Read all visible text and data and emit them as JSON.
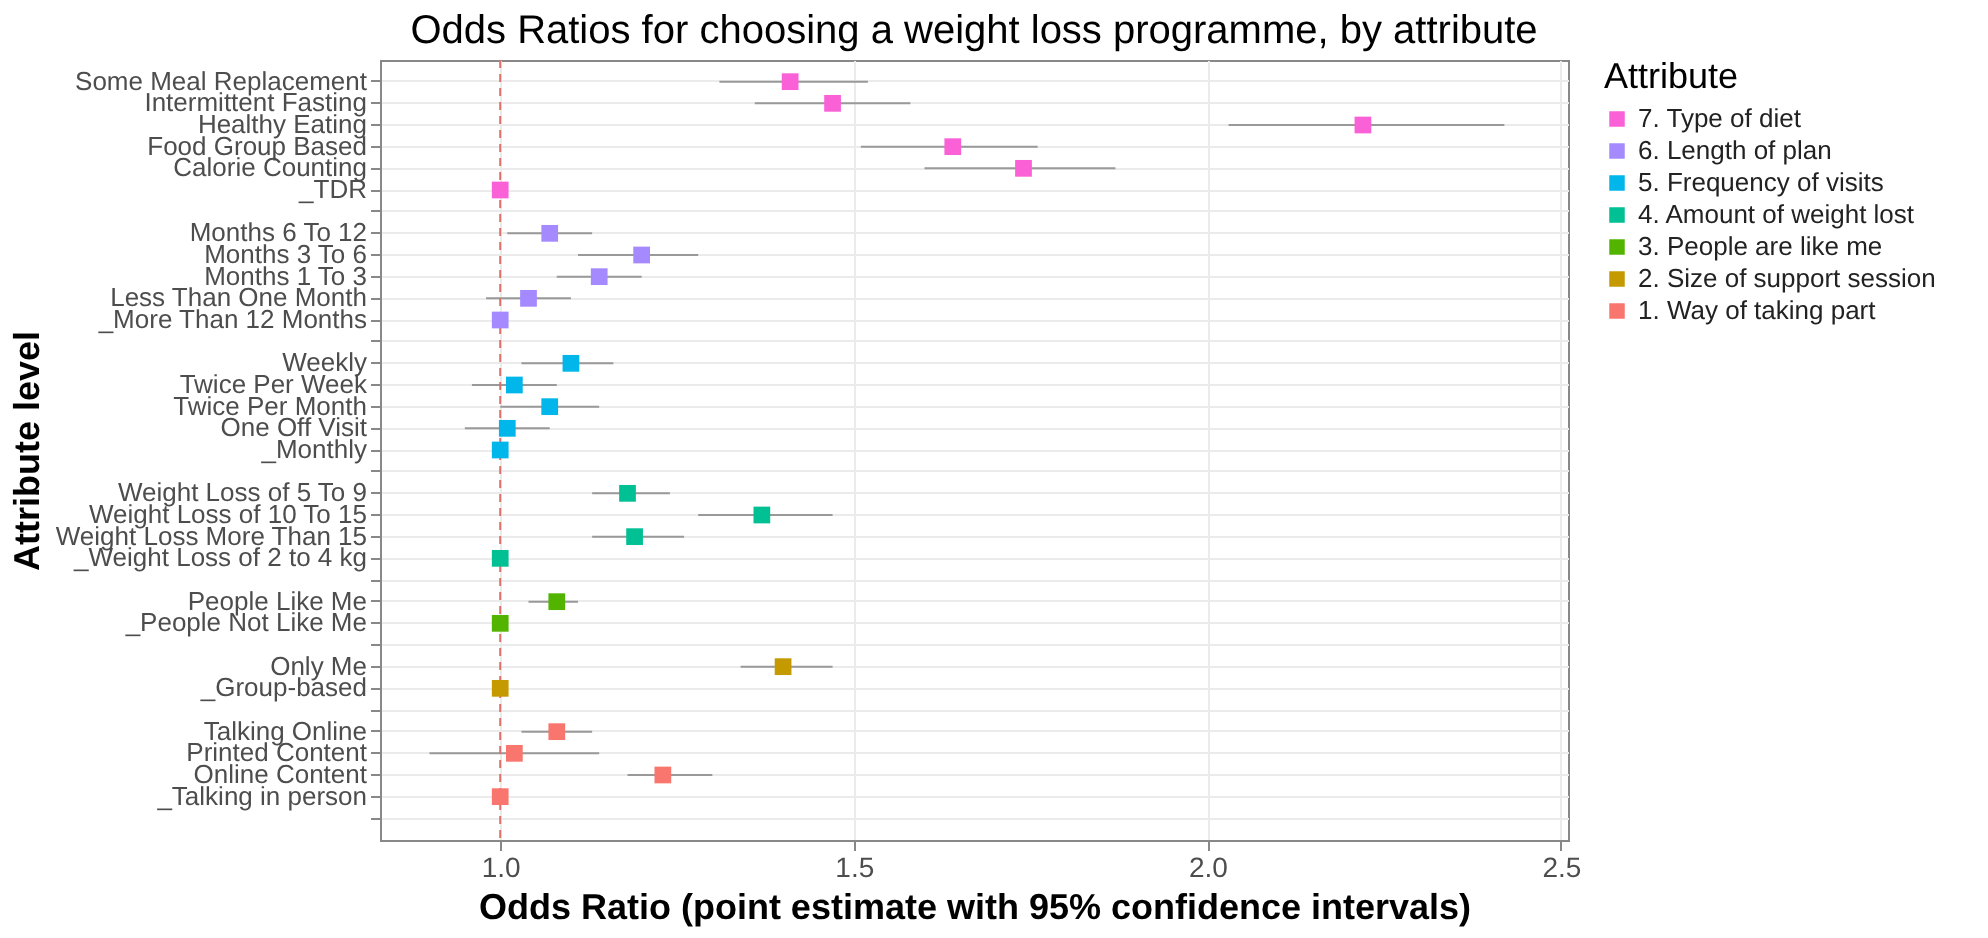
{
  "chart_data": {
    "type": "scatter",
    "orientation": "horizontal",
    "title": "Odds Ratios for choosing a weight loss programme, by attribute",
    "xlabel": "Odds Ratio (point estimate with 95% confidence intervals)",
    "ylabel": "Attribute level",
    "legend_title": "Attribute",
    "legend": "right",
    "grid": true,
    "marker": "square",
    "categories": [
      "Some Meal Replacement",
      "Intermittent Fasting",
      "Healthy Eating",
      "Food Group Based",
      "Calorie Counting",
      "_TDR",
      null,
      "Months 6 To 12",
      "Months 3 To 6",
      "Months 1 To 3",
      "Less Than One Month",
      "_More Than 12 Months",
      null,
      "Weekly",
      "Twice Per Week",
      "Twice Per Month",
      "One Off Visit",
      "_Monthly",
      null,
      "Weight Loss of 5 To 9",
      "Weight Loss of 10 To 15",
      "Weight Loss More Than 15",
      "_Weight Loss of 2 to 4 kg",
      null,
      "People Like Me",
      "_People Not Like Me",
      null,
      "Only Me",
      "_Group-based",
      null,
      "Talking Online",
      "Printed Content",
      "Online Content",
      "_Talking in person",
      null
    ],
    "xlim": [
      0.83,
      2.51
    ],
    "xticks": [
      {
        "value": 1,
        "label": "1.0"
      },
      {
        "value": 1.5,
        "label": "1.5"
      },
      {
        "value": 2,
        "label": "2.0"
      },
      {
        "value": 2.5,
        "label": "2.5"
      }
    ],
    "ref_lines": [
      {
        "axis": "x",
        "value": 1,
        "color": "#e0706a",
        "line_style": "dashed"
      }
    ],
    "series": [
      {
        "name": "7. Type of diet",
        "color": "#fb61d7",
        "values": [
          1.41,
          1.47,
          2.22,
          1.64,
          1.74,
          1.0,
          null,
          null,
          null,
          null,
          null,
          null,
          null,
          null,
          null,
          null,
          null,
          null,
          null,
          null,
          null,
          null,
          null,
          null,
          null,
          null,
          null,
          null,
          null,
          null,
          null,
          null,
          null,
          null,
          null
        ],
        "errors": [
          [
            1.31,
            1.52
          ],
          [
            1.36,
            1.58
          ],
          [
            2.03,
            2.42
          ],
          [
            1.51,
            1.76
          ],
          [
            1.6,
            1.87
          ],
          null,
          null,
          null,
          null,
          null,
          null,
          null,
          null,
          null,
          null,
          null,
          null,
          null,
          null,
          null,
          null,
          null,
          null,
          null,
          null,
          null,
          null,
          null,
          null,
          null,
          null,
          null,
          null,
          null,
          null
        ]
      },
      {
        "name": "6. Length of plan",
        "color": "#a58aff",
        "values": [
          null,
          null,
          null,
          null,
          null,
          null,
          null,
          1.07,
          1.2,
          1.14,
          1.04,
          1.0,
          null,
          null,
          null,
          null,
          null,
          null,
          null,
          null,
          null,
          null,
          null,
          null,
          null,
          null,
          null,
          null,
          null,
          null,
          null,
          null,
          null,
          null,
          null
        ],
        "errors": [
          null,
          null,
          null,
          null,
          null,
          null,
          null,
          [
            1.01,
            1.13
          ],
          [
            1.11,
            1.28
          ],
          [
            1.08,
            1.2
          ],
          [
            0.98,
            1.1
          ],
          null,
          null,
          null,
          null,
          null,
          null,
          null,
          null,
          null,
          null,
          null,
          null,
          null,
          null,
          null,
          null,
          null,
          null,
          null,
          null,
          null,
          null,
          null,
          null
        ]
      },
      {
        "name": "5. Frequency of visits",
        "color": "#00b6eb",
        "values": [
          null,
          null,
          null,
          null,
          null,
          null,
          null,
          null,
          null,
          null,
          null,
          null,
          null,
          1.1,
          1.02,
          1.07,
          1.01,
          1.0,
          null,
          null,
          null,
          null,
          null,
          null,
          null,
          null,
          null,
          null,
          null,
          null,
          null,
          null,
          null,
          null,
          null
        ],
        "errors": [
          null,
          null,
          null,
          null,
          null,
          null,
          null,
          null,
          null,
          null,
          null,
          null,
          null,
          [
            1.03,
            1.16
          ],
          [
            0.96,
            1.08
          ],
          [
            1.0,
            1.14
          ],
          [
            0.95,
            1.07
          ],
          null,
          null,
          null,
          null,
          null,
          null,
          null,
          null,
          null,
          null,
          null,
          null,
          null,
          null,
          null,
          null,
          null,
          null
        ]
      },
      {
        "name": "4. Amount of weight lost",
        "color": "#00c094",
        "values": [
          null,
          null,
          null,
          null,
          null,
          null,
          null,
          null,
          null,
          null,
          null,
          null,
          null,
          null,
          null,
          null,
          null,
          null,
          null,
          1.18,
          1.37,
          1.19,
          1.0,
          null,
          null,
          null,
          null,
          null,
          null,
          null,
          null,
          null,
          null,
          null,
          null
        ],
        "errors": [
          null,
          null,
          null,
          null,
          null,
          null,
          null,
          null,
          null,
          null,
          null,
          null,
          null,
          null,
          null,
          null,
          null,
          null,
          null,
          [
            1.13,
            1.24
          ],
          [
            1.28,
            1.47
          ],
          [
            1.13,
            1.26
          ],
          null,
          null,
          null,
          null,
          null,
          null,
          null,
          null,
          null,
          null,
          null,
          null,
          null
        ]
      },
      {
        "name": "3. People are like me",
        "color": "#53b400",
        "values": [
          null,
          null,
          null,
          null,
          null,
          null,
          null,
          null,
          null,
          null,
          null,
          null,
          null,
          null,
          null,
          null,
          null,
          null,
          null,
          null,
          null,
          null,
          null,
          null,
          1.08,
          1.0,
          null,
          null,
          null,
          null,
          null,
          null,
          null,
          null,
          null
        ],
        "errors": [
          null,
          null,
          null,
          null,
          null,
          null,
          null,
          null,
          null,
          null,
          null,
          null,
          null,
          null,
          null,
          null,
          null,
          null,
          null,
          null,
          null,
          null,
          null,
          null,
          [
            1.04,
            1.11
          ],
          null,
          null,
          null,
          null,
          null,
          null,
          null,
          null,
          null,
          null
        ]
      },
      {
        "name": "2. Size of support session",
        "color": "#c49a00",
        "values": [
          null,
          null,
          null,
          null,
          null,
          null,
          null,
          null,
          null,
          null,
          null,
          null,
          null,
          null,
          null,
          null,
          null,
          null,
          null,
          null,
          null,
          null,
          null,
          null,
          null,
          null,
          null,
          1.4,
          1.0,
          null,
          null,
          null,
          null,
          null,
          null
        ],
        "errors": [
          null,
          null,
          null,
          null,
          null,
          null,
          null,
          null,
          null,
          null,
          null,
          null,
          null,
          null,
          null,
          null,
          null,
          null,
          null,
          null,
          null,
          null,
          null,
          null,
          null,
          null,
          null,
          [
            1.34,
            1.47
          ],
          null,
          null,
          null,
          null,
          null,
          null,
          null
        ]
      },
      {
        "name": "1. Way of taking part",
        "color": "#f8766d",
        "values": [
          null,
          null,
          null,
          null,
          null,
          null,
          null,
          null,
          null,
          null,
          null,
          null,
          null,
          null,
          null,
          null,
          null,
          null,
          null,
          null,
          null,
          null,
          null,
          null,
          null,
          null,
          null,
          null,
          null,
          null,
          1.08,
          1.02,
          1.23,
          1.0,
          null
        ],
        "errors": [
          null,
          null,
          null,
          null,
          null,
          null,
          null,
          null,
          null,
          null,
          null,
          null,
          null,
          null,
          null,
          null,
          null,
          null,
          null,
          null,
          null,
          null,
          null,
          null,
          null,
          null,
          null,
          null,
          null,
          null,
          [
            1.03,
            1.13
          ],
          [
            0.9,
            1.14
          ],
          [
            1.18,
            1.3
          ],
          null,
          null
        ]
      }
    ]
  }
}
